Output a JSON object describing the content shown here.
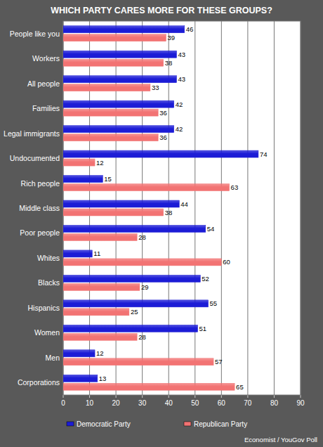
{
  "chart_data": {
    "type": "bar",
    "orientation": "horizontal",
    "title": "WHICH PARTY CARES MORE FOR THESE GROUPS?",
    "source": "Economist / YouGov Poll",
    "categories": [
      "People like you",
      "Workers",
      "All people",
      "Families",
      "Legal immigrants",
      "Undocumented",
      "Rich people",
      "Middle class",
      "Poor people",
      "Whites",
      "Blacks",
      "Hispanics",
      "Women",
      "Men",
      "Corporations"
    ],
    "series": [
      {
        "name": "Democratic Party",
        "color": "#1c1cd6",
        "values": [
          46,
          43,
          43,
          42,
          42,
          74,
          15,
          44,
          54,
          11,
          52,
          55,
          51,
          12,
          13
        ]
      },
      {
        "name": "Republican Party",
        "color": "#f27373",
        "values": [
          39,
          38,
          33,
          36,
          36,
          12,
          63,
          38,
          28,
          60,
          29,
          25,
          28,
          57,
          65
        ]
      }
    ],
    "xlim": [
      0,
      90
    ],
    "xticks": [
      0,
      10,
      20,
      30,
      40,
      50,
      60,
      70,
      80,
      90
    ],
    "grid": true,
    "data_labels": true,
    "legend": "bottom"
  }
}
